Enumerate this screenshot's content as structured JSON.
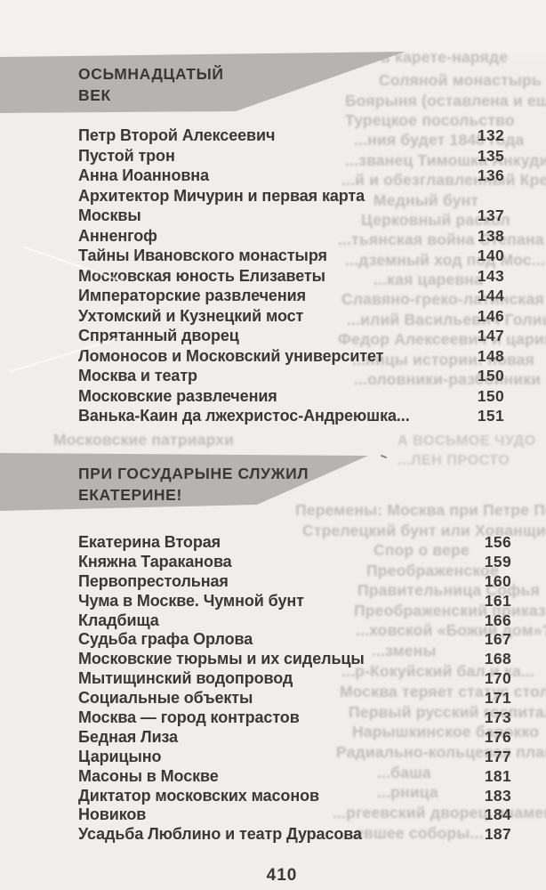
{
  "page": {
    "folio": "410"
  },
  "colors": {
    "paper": "#efeeeb",
    "banner_gray": "#b6b4b1",
    "text_ink": "#3a3836"
  },
  "sections": [
    {
      "heading_lines": [
        "ОСЬМНАДЦАТЫЙ",
        "ВЕК"
      ],
      "entries": [
        {
          "title": "Петр Второй Алексеевич",
          "page": "132"
        },
        {
          "title": "Пустой трон",
          "page": "135"
        },
        {
          "title": "Анна Иоанновна",
          "page": "136"
        },
        {
          "title": "Архитектор Мичурин и первая карта",
          "page": ""
        },
        {
          "title": "Москвы",
          "page": "137"
        },
        {
          "title": "Анненгоф",
          "page": "138"
        },
        {
          "title": "Тайны Ивановского монастыря",
          "page": "140"
        },
        {
          "title": "Московская юность Елизаветы",
          "page": "143"
        },
        {
          "title": "Императорские развлечения",
          "page": "144"
        },
        {
          "title": "Ухтомский и Кузнецкий мост",
          "page": "146"
        },
        {
          "title": "Спрятанный дворец",
          "page": "147"
        },
        {
          "title": "Ломоносов и Московский университет",
          "page": "148"
        },
        {
          "title": "Москва и театр",
          "page": "150"
        },
        {
          "title": "Московские развлечения",
          "page": "150"
        },
        {
          "title": "Ванька-Каин да лжехристос-Андреюшка...",
          "page": "151"
        }
      ]
    },
    {
      "heading_lines": [
        "ПРИ ГОСУДАРЫНЕ СЛУЖИЛ",
        "ЕКАТЕРИНЕ!"
      ],
      "entries": [
        {
          "title": "Екатерина Вторая",
          "page": "156"
        },
        {
          "title": "Княжна Тараканова",
          "page": "159"
        },
        {
          "title": "Первопрестольная",
          "page": "160"
        },
        {
          "title": "Чума в Москве. Чумной бунт",
          "page": "161"
        },
        {
          "title": "Кладбища",
          "page": "166"
        },
        {
          "title": "Судьба графа Орлова",
          "page": "167"
        },
        {
          "title": "Московские тюрьмы и их сидельцы",
          "page": "168"
        },
        {
          "title": "Мытищинский водопровод",
          "page": "170"
        },
        {
          "title": "Социальные объекты",
          "page": "171"
        },
        {
          "title": "Москва — город контрастов",
          "page": "173"
        },
        {
          "title": "Бедная Лиза",
          "page": "176"
        },
        {
          "title": "Царицыно",
          "page": "177"
        },
        {
          "title": "Масоны в Москве",
          "page": "181"
        },
        {
          "title": "Диктатор московских масонов",
          "page": "183"
        },
        {
          "title": "Новиков",
          "page": "184"
        },
        {
          "title": "Усадьба Люблино и театр Дурасова",
          "page": "187"
        }
      ]
    }
  ],
  "bleedthrough": {
    "lines": [
      {
        "t": 54,
        "l": 428,
        "text": "в карете-наряде"
      },
      {
        "t": 80,
        "l": 426,
        "text": "Соляной монастырь"
      },
      {
        "t": 103,
        "l": 388,
        "text": "Боярыня (оставлена и еще о..."
      },
      {
        "t": 125,
        "l": 388,
        "text": "Турецкое посольство"
      },
      {
        "t": 147,
        "l": 398,
        "text": "...ния будет 1848 года"
      },
      {
        "t": 170,
        "l": 388,
        "text": "...званец Тимошка Анкудинов"
      },
      {
        "t": 192,
        "l": 384,
        "text": "...й и обезглавленный Кремль"
      },
      {
        "t": 215,
        "l": 420,
        "text": "Медный бунт"
      },
      {
        "t": 237,
        "l": 406,
        "text": "Церковный раскол"
      },
      {
        "t": 259,
        "l": 380,
        "text": "...тьянская война Степана Разина"
      },
      {
        "t": 282,
        "l": 388,
        "text": "...дземный ход под Мос..."
      },
      {
        "t": 304,
        "l": 420,
        "text": "...кая царевна"
      },
      {
        "t": 326,
        "l": 384,
        "text": "Славяно-греко-латинская ак..."
      },
      {
        "t": 349,
        "l": 390,
        "text": "...илий Васильевич Голицын"
      },
      {
        "t": 371,
        "l": 380,
        "text": "Федор Алексеевич и царица Агафья"
      },
      {
        "t": 394,
        "l": 396,
        "text": "...ницы истории: новая"
      },
      {
        "t": 416,
        "l": 398,
        "text": "...оловники-разбойники"
      },
      {
        "t": 484,
        "l": 60,
        "text": "Московские патриархи"
      },
      {
        "t": 487,
        "l": 447,
        "text": "А ВОСЬМОЕ ЧУДО",
        "caps": true
      },
      {
        "t": 509,
        "l": 447,
        "text": "...ЛЕН ПРОСТО",
        "caps": true
      },
      {
        "t": 563,
        "l": 332,
        "text": "Перемены: Москва при Петре Пе..."
      },
      {
        "t": 586,
        "l": 340,
        "text": "Стрелецкий бунт или Хованщина"
      },
      {
        "t": 608,
        "l": 420,
        "text": "Спор о вере"
      },
      {
        "t": 631,
        "l": 412,
        "text": "Преображенское"
      },
      {
        "t": 653,
        "l": 402,
        "text": "Правительница Софья"
      },
      {
        "t": 676,
        "l": 398,
        "text": "Преображенский приказ"
      },
      {
        "t": 698,
        "l": 400,
        "text": "...ховской «Божий дом»?"
      },
      {
        "t": 721,
        "l": 418,
        "text": "...змены"
      },
      {
        "t": 744,
        "l": 384,
        "text": "...р-Кокуйский бал и ка..."
      },
      {
        "t": 767,
        "l": 382,
        "text": "Москва теряет статус столицы"
      },
      {
        "t": 790,
        "l": 392,
        "text": "Первый русский госпиталь"
      },
      {
        "t": 812,
        "l": 396,
        "text": "Нарышкинское барокко"
      },
      {
        "t": 835,
        "l": 378,
        "text": "Радиально-кольцевая планировка"
      },
      {
        "t": 858,
        "l": 424,
        "text": "...баша"
      },
      {
        "t": 880,
        "l": 424,
        "text": "...рница"
      },
      {
        "t": 903,
        "l": 374,
        "text": "...ргеевский дворец, знаменитый осн..."
      },
      {
        "t": 926,
        "l": 384,
        "text": "...евшее соборы..."
      }
    ]
  }
}
